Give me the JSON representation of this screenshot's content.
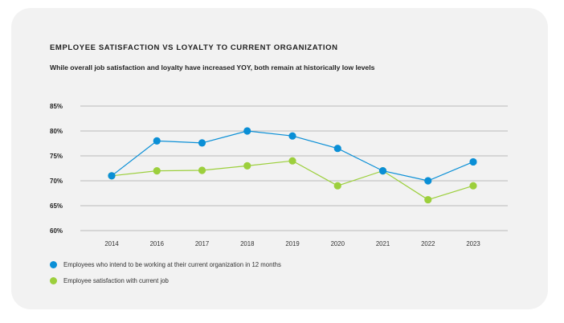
{
  "chart_data": {
    "type": "line",
    "title": "EMPLOYEE SATISFACTION VS LOYALTY TO CURRENT ORGANIZATION",
    "subtitle": "While overall job satisfaction and loyalty have increased YOY, both remain at historically low levels",
    "categories": [
      "2014",
      "2016",
      "2017",
      "2018",
      "2019",
      "2020",
      "2021",
      "2022",
      "2023"
    ],
    "ylim": [
      60,
      85
    ],
    "yticks": [
      60,
      65,
      70,
      75,
      80,
      85
    ],
    "ytick_labels": [
      "60%",
      "65%",
      "70%",
      "75%",
      "80%",
      "85%"
    ],
    "grid": true,
    "legend_position": "bottom-left",
    "series": [
      {
        "name": "Employees who intend to be working at their current organization in 12 months",
        "color": "#0a8fd6",
        "values": [
          71,
          78,
          77.6,
          80,
          79,
          76.5,
          72,
          70,
          73.8
        ]
      },
      {
        "name": "Employee satisfaction with current job",
        "color": "#9ccf3c",
        "values": [
          71,
          72,
          72.1,
          73,
          74,
          69,
          72,
          66.2,
          69
        ]
      }
    ]
  }
}
